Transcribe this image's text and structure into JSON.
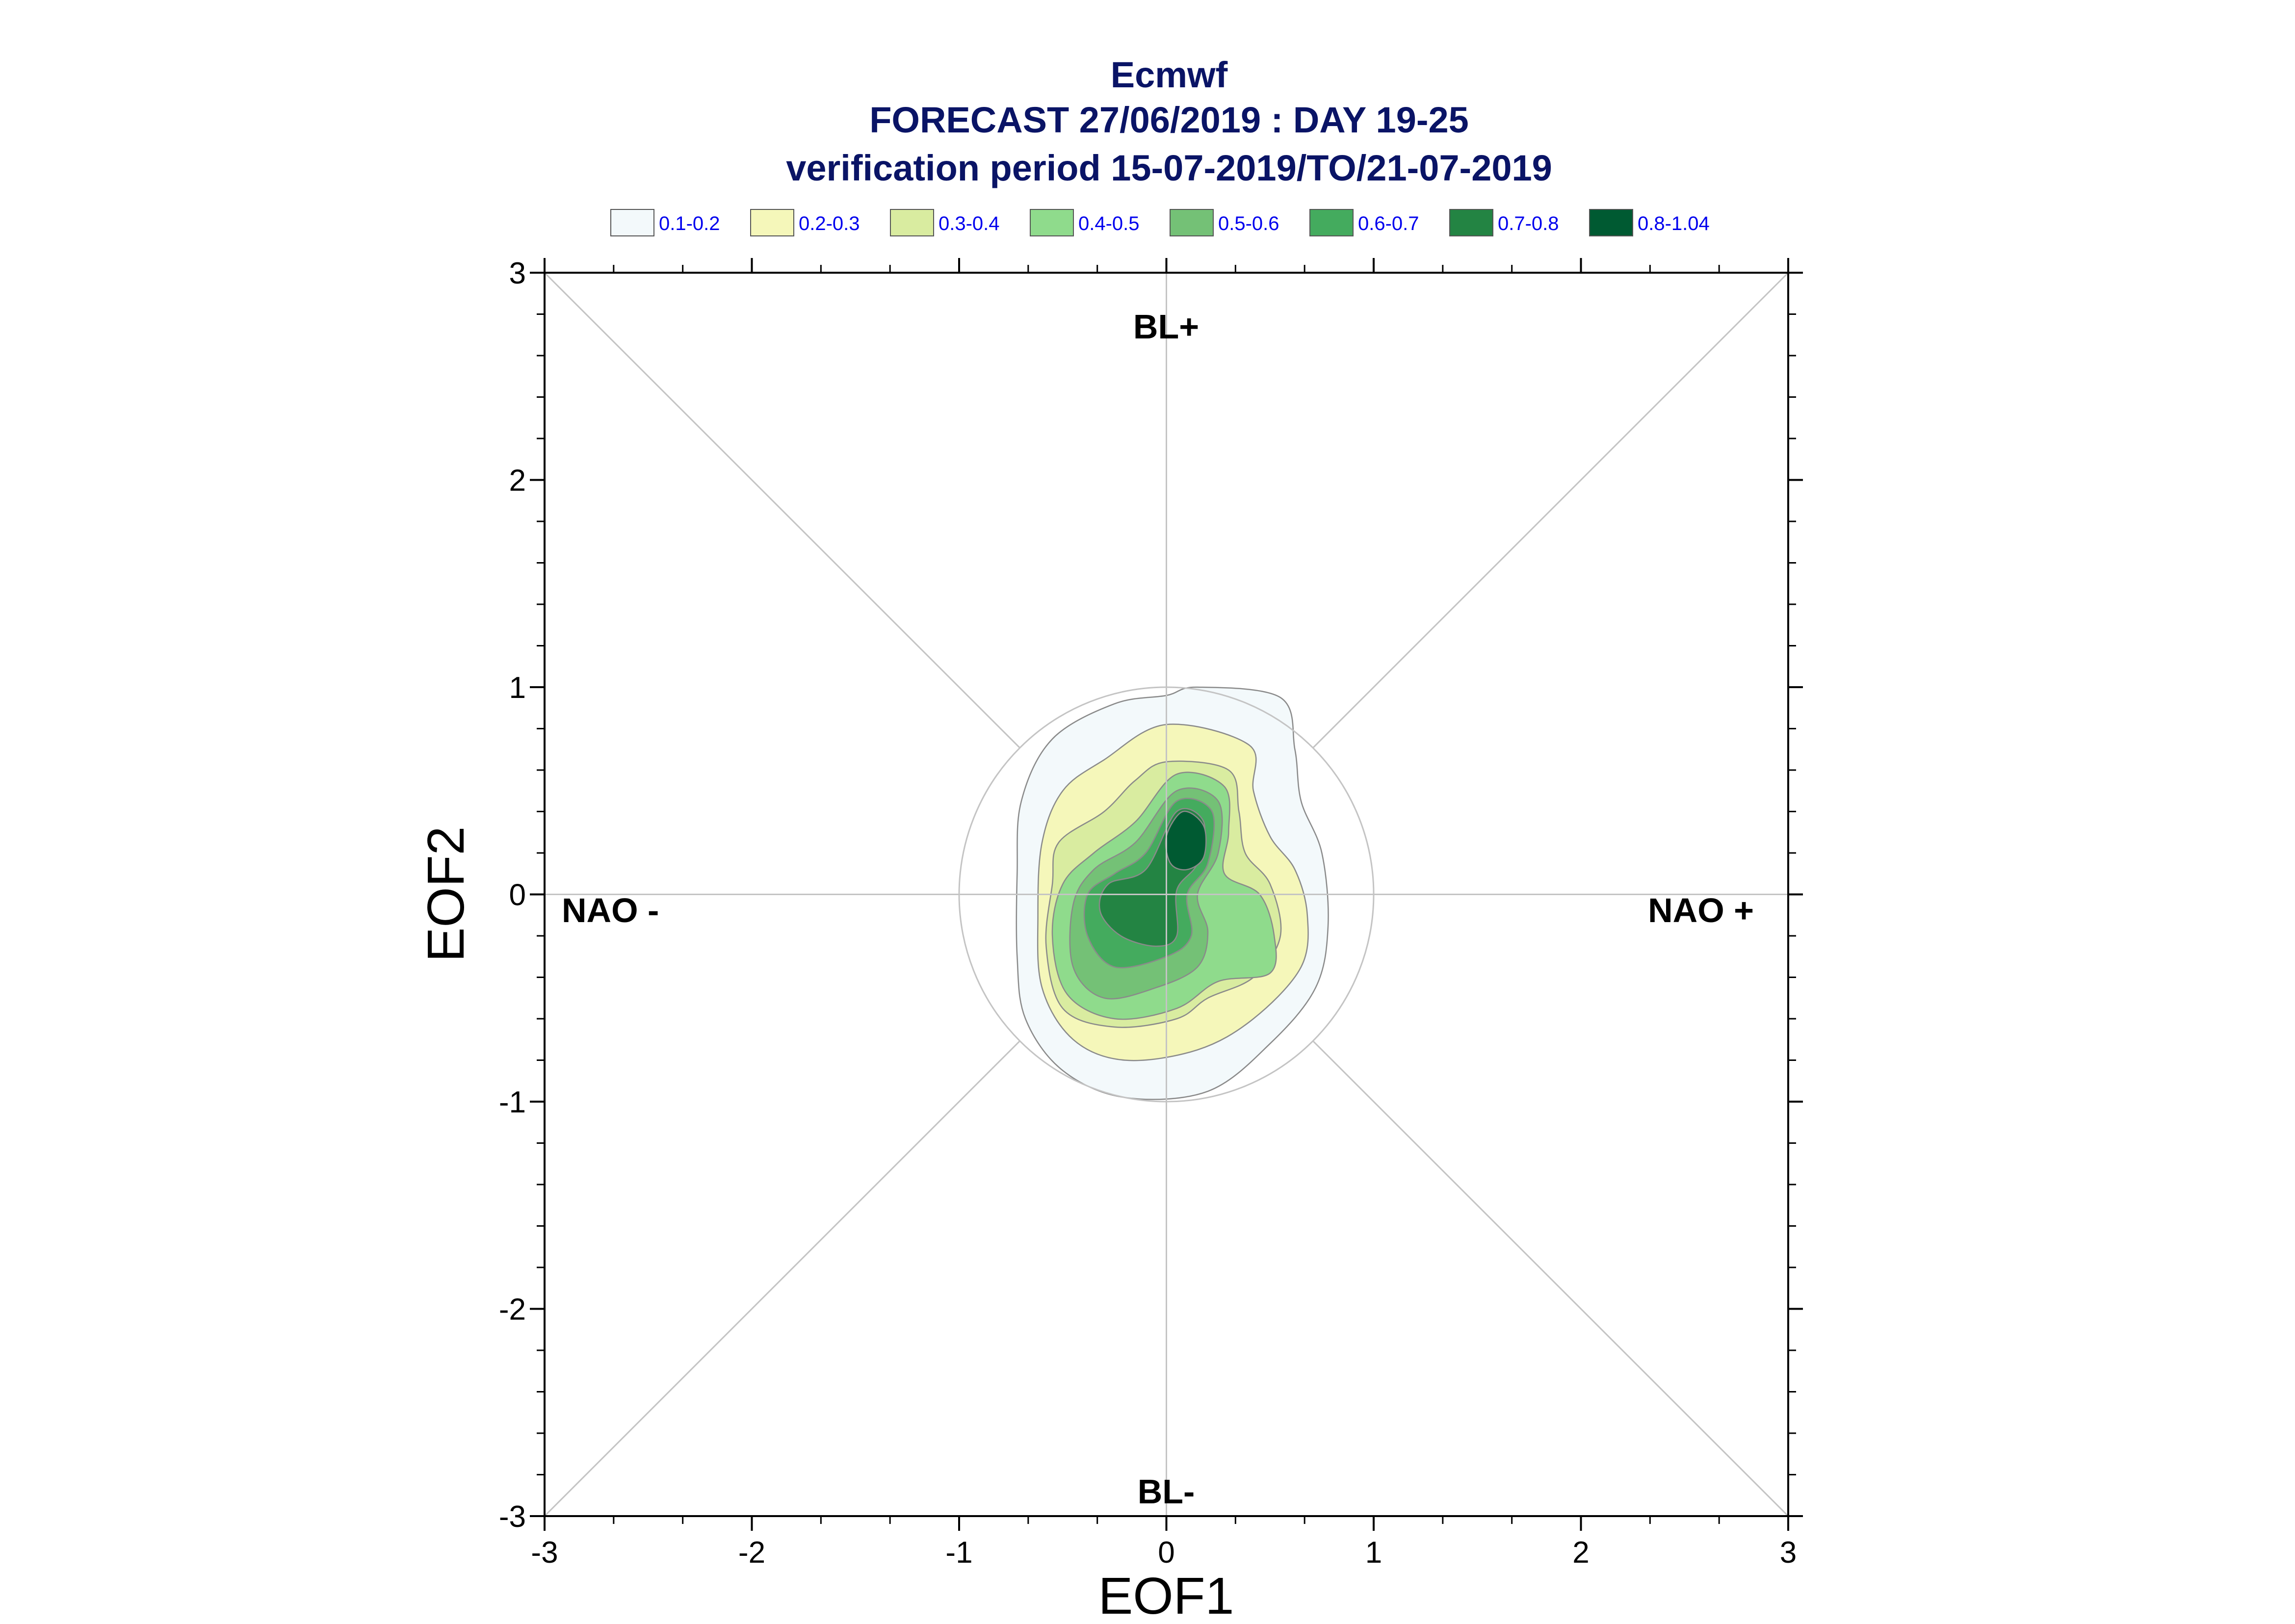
{
  "header": {
    "title": "Ecmwf",
    "subtitle": "FORECAST 27/06/2019 : DAY 19-25",
    "period": "verification period 15-07-2019/TO/21-07-2019"
  },
  "legend": [
    {
      "label": "0.1-0.2",
      "color": "#f3f9fb"
    },
    {
      "label": "0.2-0.3",
      "color": "#f5f7ba"
    },
    {
      "label": "0.3-0.4",
      "color": "#d9eca0"
    },
    {
      "label": "0.4-0.5",
      "color": "#8fdb8c"
    },
    {
      "label": "0.5-0.6",
      "color": "#74c176"
    },
    {
      "label": "0.6-0.7",
      "color": "#44ab5e"
    },
    {
      "label": "0.7-0.8",
      "color": "#238443"
    },
    {
      "label": "0.8-1.04",
      "color": "#005a32"
    }
  ],
  "regimes": {
    "top": "BL+",
    "bottom": "BL-",
    "left": "NAO -",
    "right": "NAO +"
  },
  "chart_data": {
    "type": "contour",
    "title": "Ecmwf",
    "xlabel": "EOF1",
    "ylabel": "EOF2",
    "xlim": [
      -3,
      3
    ],
    "ylim": [
      -3,
      3
    ],
    "xticks": [
      "-3",
      "-2",
      "-1",
      "0",
      "1",
      "2",
      "3"
    ],
    "yticks": [
      "-3",
      "-2",
      "-1",
      "0",
      "1",
      "2",
      "3"
    ],
    "reference_circle_radius": 1,
    "diagonals": true,
    "density_maxima": [
      {
        "x": 0.08,
        "y": 0.25,
        "level": "0.8-1.04"
      },
      {
        "x": -0.2,
        "y": 0.0,
        "level": "0.7-0.8"
      }
    ],
    "contours": [
      {
        "level": "0.1-0.2",
        "points": [
          [
            0.15,
            1.0
          ],
          [
            0.55,
            0.95
          ],
          [
            0.62,
            0.7
          ],
          [
            0.65,
            0.45
          ],
          [
            0.75,
            0.2
          ],
          [
            0.78,
            -0.15
          ],
          [
            0.72,
            -0.45
          ],
          [
            0.5,
            -0.72
          ],
          [
            0.2,
            -0.95
          ],
          [
            -0.2,
            -0.98
          ],
          [
            -0.5,
            -0.85
          ],
          [
            -0.68,
            -0.6
          ],
          [
            -0.72,
            -0.3
          ],
          [
            -0.72,
            0.1
          ],
          [
            -0.7,
            0.45
          ],
          [
            -0.55,
            0.75
          ],
          [
            -0.25,
            0.92
          ],
          [
            0.0,
            0.96
          ]
        ]
      },
      {
        "level": "0.2-0.3",
        "points": [
          [
            0.0,
            0.82
          ],
          [
            0.4,
            0.72
          ],
          [
            0.42,
            0.5
          ],
          [
            0.5,
            0.28
          ],
          [
            0.62,
            0.12
          ],
          [
            0.68,
            -0.1
          ],
          [
            0.65,
            -0.35
          ],
          [
            0.42,
            -0.6
          ],
          [
            0.15,
            -0.75
          ],
          [
            -0.2,
            -0.8
          ],
          [
            -0.45,
            -0.7
          ],
          [
            -0.6,
            -0.45
          ],
          [
            -0.62,
            -0.1
          ],
          [
            -0.6,
            0.25
          ],
          [
            -0.5,
            0.5
          ],
          [
            -0.3,
            0.65
          ]
        ]
      },
      {
        "level": "0.3-0.4",
        "points": [
          [
            0.0,
            0.64
          ],
          [
            0.3,
            0.6
          ],
          [
            0.35,
            0.4
          ],
          [
            0.38,
            0.2
          ],
          [
            0.5,
            0.05
          ],
          [
            0.55,
            -0.2
          ],
          [
            0.42,
            -0.4
          ],
          [
            0.2,
            -0.5
          ],
          [
            0.05,
            -0.6
          ],
          [
            -0.25,
            -0.64
          ],
          [
            -0.5,
            -0.55
          ],
          [
            -0.58,
            -0.25
          ],
          [
            -0.55,
            0.05
          ],
          [
            -0.52,
            0.25
          ],
          [
            -0.3,
            0.4
          ],
          [
            -0.15,
            0.55
          ]
        ]
      },
      {
        "level": "0.4-0.5",
        "points": [
          [
            0.05,
            0.58
          ],
          [
            0.28,
            0.52
          ],
          [
            0.3,
            0.3
          ],
          [
            0.28,
            0.1
          ],
          [
            0.45,
            0.0
          ],
          [
            0.52,
            -0.2
          ],
          [
            0.5,
            -0.38
          ],
          [
            0.25,
            -0.42
          ],
          [
            0.05,
            -0.55
          ],
          [
            -0.25,
            -0.6
          ],
          [
            -0.48,
            -0.48
          ],
          [
            -0.55,
            -0.2
          ],
          [
            -0.5,
            0.05
          ],
          [
            -0.35,
            0.2
          ],
          [
            -0.15,
            0.35
          ]
        ]
      },
      {
        "level": "0.5-0.6",
        "points": [
          [
            0.05,
            0.5
          ],
          [
            0.25,
            0.45
          ],
          [
            0.25,
            0.2
          ],
          [
            0.15,
            0.0
          ],
          [
            0.2,
            -0.18
          ],
          [
            0.15,
            -0.35
          ],
          [
            -0.05,
            -0.45
          ],
          [
            -0.3,
            -0.5
          ],
          [
            -0.45,
            -0.35
          ],
          [
            -0.45,
            -0.05
          ],
          [
            -0.35,
            0.12
          ],
          [
            -0.15,
            0.25
          ]
        ]
      },
      {
        "level": "0.6-0.7",
        "points": [
          [
            0.05,
            0.45
          ],
          [
            0.22,
            0.4
          ],
          [
            0.2,
            0.15
          ],
          [
            0.1,
            0.0
          ],
          [
            0.12,
            -0.2
          ],
          [
            0.0,
            -0.3
          ],
          [
            -0.25,
            -0.35
          ],
          [
            -0.38,
            -0.2
          ],
          [
            -0.38,
            0.0
          ],
          [
            -0.25,
            0.1
          ],
          [
            -0.1,
            0.2
          ]
        ]
      },
      {
        "level": "0.7-0.8",
        "points": [
          [
            0.05,
            0.4
          ],
          [
            0.18,
            0.35
          ],
          [
            0.15,
            0.15
          ],
          [
            0.05,
            0.02
          ],
          [
            0.05,
            -0.2
          ],
          [
            -0.05,
            -0.25
          ],
          [
            -0.22,
            -0.2
          ],
          [
            -0.32,
            -0.08
          ],
          [
            -0.28,
            0.05
          ],
          [
            -0.1,
            0.12
          ]
        ]
      },
      {
        "level": "0.8-1.04",
        "points": [
          [
            0.08,
            0.4
          ],
          [
            0.18,
            0.33
          ],
          [
            0.18,
            0.18
          ],
          [
            0.1,
            0.12
          ],
          [
            0.02,
            0.15
          ],
          [
            0.0,
            0.28
          ]
        ]
      }
    ]
  }
}
